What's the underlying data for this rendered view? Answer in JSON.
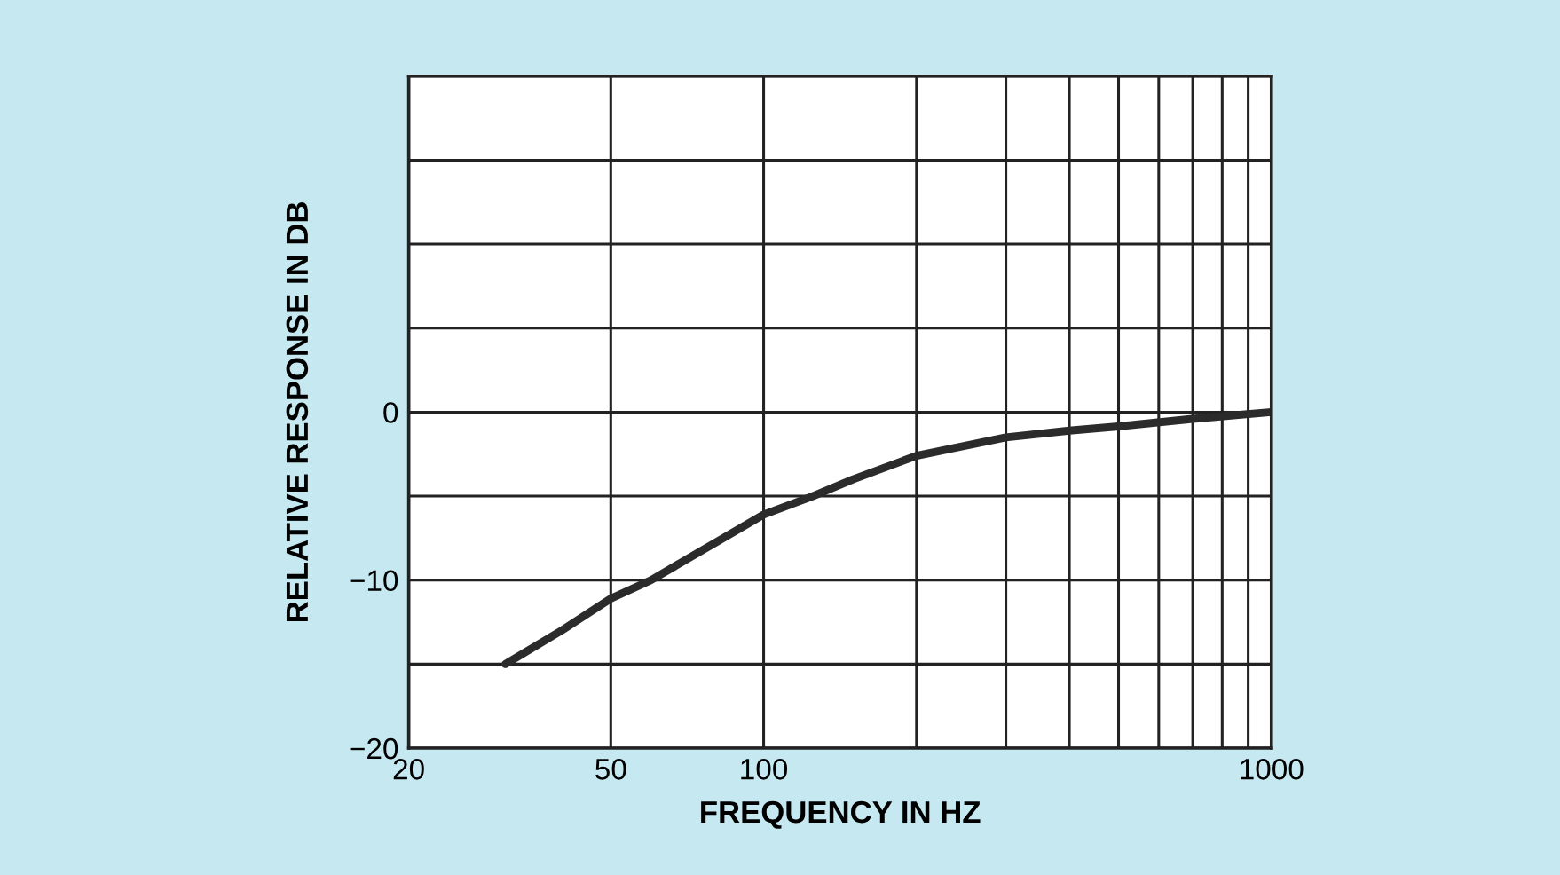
{
  "chart_data": {
    "type": "line",
    "xlabel": "FREQUENCY IN HZ",
    "ylabel": "RELATIVE RESPONSE IN DB",
    "log": "x",
    "grid": true,
    "x": [
      31,
      40,
      50,
      60,
      80,
      100,
      125,
      150,
      200,
      300,
      400,
      500,
      700,
      1000
    ],
    "series": [
      {
        "color": "#2b2b2b",
        "values": [
          -15,
          -13,
          -11.1,
          -10,
          -7.8,
          -6.1,
          -5,
          -4,
          -2.6,
          -1.5,
          -1.1,
          -0.85,
          -0.4,
          0
        ]
      }
    ],
    "xlim": [
      20,
      1000
    ],
    "ylim": [
      -20,
      20
    ],
    "xticks": [
      20,
      50,
      100,
      {
        "value": 200,
        "label": null
      },
      {
        "value": 300,
        "label": null
      },
      {
        "value": 400,
        "label": null
      },
      {
        "value": 500,
        "label": null
      },
      {
        "value": 600,
        "label": null
      },
      {
        "value": 700,
        "label": null
      },
      {
        "value": 800,
        "label": null
      },
      {
        "value": 900,
        "label": null
      },
      1000
    ],
    "yticks": [
      {
        "value": -20,
        "label": "−20"
      },
      {
        "value": -15,
        "label": null
      },
      {
        "value": -10,
        "label": "−10"
      },
      {
        "value": -5,
        "label": null
      },
      0,
      {
        "value": 5,
        "label": null
      },
      {
        "value": 10,
        "label": null
      },
      {
        "value": 15,
        "label": null
      },
      {
        "value": 20,
        "label": null
      }
    ]
  }
}
